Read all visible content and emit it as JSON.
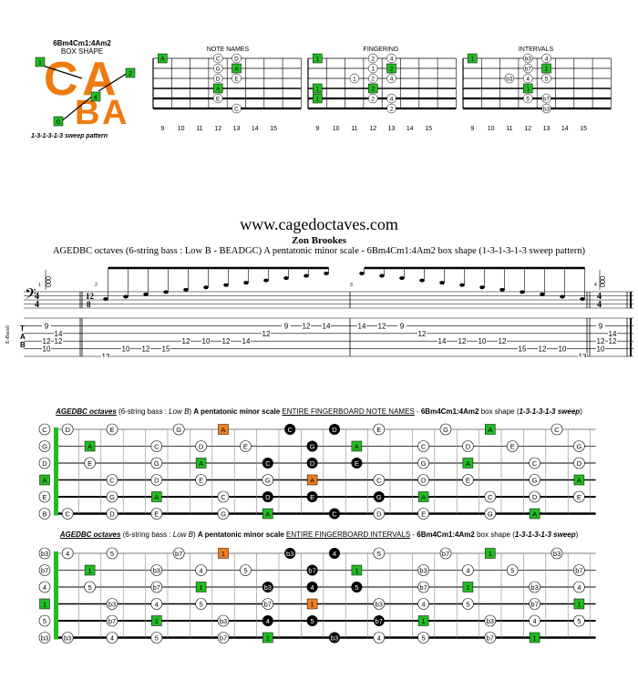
{
  "box": {
    "name": "6Bm4Cm1:4Am2",
    "shape_label": "BOX SHAPE",
    "letters": "CABA",
    "sweep": "1-3-1-3-1-3 sweep pattern",
    "markers": [
      "1",
      "2",
      "4",
      "0"
    ]
  },
  "diagrams": [
    {
      "label": "NOTE NAMES",
      "frets": [
        "9",
        "10",
        "11",
        "12",
        "13",
        "14",
        "15"
      ],
      "rows": [
        [
          "A",
          "",
          "",
          "C",
          "D",
          "",
          ""
        ],
        [
          "",
          "",
          "",
          "G",
          "A",
          "",
          ""
        ],
        [
          "",
          "",
          "",
          "D",
          "E",
          "",
          ""
        ],
        [
          "",
          "",
          "",
          "A",
          "",
          "",
          ""
        ],
        [
          "",
          "",
          "",
          "E",
          "",
          "",
          ""
        ],
        [
          "",
          "",
          "",
          "",
          "C",
          "",
          ""
        ]
      ]
    },
    {
      "label": "FINGERING",
      "frets": [
        "9",
        "10",
        "11",
        "12",
        "13",
        "14",
        "15"
      ],
      "rows": [
        [
          "1",
          "",
          "",
          "2",
          "4",
          "",
          ""
        ],
        [
          "",
          "",
          "",
          "1",
          "2",
          "",
          ""
        ],
        [
          "",
          "",
          "1",
          "2",
          "4",
          "",
          ""
        ],
        [
          "1",
          "",
          "",
          "2",
          "",
          "",
          ""
        ],
        [
          "1",
          "",
          "",
          "2",
          "4",
          "",
          ""
        ],
        [
          "",
          "",
          "",
          "",
          "2",
          "",
          ""
        ]
      ]
    },
    {
      "label": "INTERVALS",
      "frets": [
        "9",
        "10",
        "11",
        "12",
        "13",
        "14",
        "15"
      ],
      "rows": [
        [
          "1",
          "",
          "",
          "b3",
          "4",
          "",
          ""
        ],
        [
          "",
          "",
          "",
          "b7",
          "1",
          "",
          ""
        ],
        [
          "",
          "",
          "b3",
          "4",
          "5",
          "",
          ""
        ],
        [
          "",
          "",
          "",
          "1",
          "",
          "",
          ""
        ],
        [
          "",
          "",
          "",
          "5",
          "b7",
          "",
          ""
        ],
        [
          "",
          "",
          "",
          "",
          "b3",
          "",
          ""
        ]
      ]
    }
  ],
  "header": {
    "site": "www.cagedoctaves.com",
    "author": "Zon Brookes",
    "subtitle": "AGEDBC octaves (6-string bass : Low B - BEADGC) A pentatonic minor scale - 6Bm4Cm1:4Am2 box shape (1-3-1-3-1-3 sweep pattern)"
  },
  "score": {
    "instrument": "E-Bass6",
    "time1": [
      "4",
      "4"
    ],
    "time2": [
      "12",
      "8"
    ],
    "measure_numbers": [
      "1",
      "2",
      "3",
      "4"
    ],
    "tab_letters": [
      "T",
      "A",
      "B"
    ],
    "chord1": [
      {
        "string": 2,
        "fret": "9"
      },
      {
        "string": 3,
        "fret": "14"
      },
      {
        "string": 4,
        "fret": "12"
      },
      {
        "string": 4.0,
        "fret": "12"
      },
      {
        "string": 5,
        "fret": "10"
      }
    ],
    "run1": [
      {
        "string": 6,
        "fret": "13"
      },
      {
        "string": 5,
        "fret": "10"
      },
      {
        "string": 5,
        "fret": "12"
      },
      {
        "string": 5,
        "fret": "15"
      },
      {
        "string": 4,
        "fret": "12"
      },
      {
        "string": 4,
        "fret": "10"
      },
      {
        "string": 4,
        "fret": "12"
      },
      {
        "string": 4,
        "fret": "14"
      },
      {
        "string": 3,
        "fret": "12"
      },
      {
        "string": 2,
        "fret": "9"
      },
      {
        "string": 2,
        "fret": "12"
      },
      {
        "string": 2,
        "fret": "14"
      }
    ],
    "run2": [
      {
        "string": 2,
        "fret": "14"
      },
      {
        "string": 2,
        "fret": "12"
      },
      {
        "string": 2,
        "fret": "9"
      },
      {
        "string": 3,
        "fret": "12"
      },
      {
        "string": 4,
        "fret": "14"
      },
      {
        "string": 4,
        "fret": "12"
      },
      {
        "string": 4,
        "fret": "10"
      },
      {
        "string": 4,
        "fret": "12"
      },
      {
        "string": 5,
        "fret": "15"
      },
      {
        "string": 5,
        "fret": "12"
      },
      {
        "string": 5,
        "fret": "10"
      },
      {
        "string": 6,
        "fret": "13"
      }
    ]
  },
  "fb1": {
    "title_parts": [
      "AGEDBC octaves",
      " (6-string bass : ",
      "Low B",
      ") ",
      "A pentatonic minor scale",
      " ",
      "ENTIRE FINGERBOARD NOTE NAMES",
      " - ",
      "6Bm4Cm1:4Am2",
      " box shape (",
      "1-3-1-3-1-3 sweep",
      ")"
    ],
    "open": [
      "C",
      "G",
      "D",
      "A",
      "E",
      "B"
    ],
    "frets": [
      "1",
      "2",
      "3",
      "4",
      "5",
      "6",
      "7",
      "8",
      "9",
      "10",
      "11",
      "12",
      "13",
      "14",
      "15",
      "16",
      "17",
      "18",
      "19",
      "20",
      "21",
      "22",
      "23",
      "24"
    ],
    "rows": [
      [
        [
          "D",
          1,
          "w"
        ],
        [
          "E",
          3,
          "w"
        ],
        [
          "G",
          6,
          "w"
        ],
        [
          "A",
          8,
          "o"
        ],
        [
          "C",
          11,
          "b"
        ],
        [
          "D",
          13,
          "b"
        ],
        [
          "E",
          15,
          "w"
        ],
        [
          "G",
          18,
          "w"
        ],
        [
          "A",
          20,
          "g"
        ],
        [
          "C",
          23,
          "w"
        ]
      ],
      [
        [
          "A",
          2,
          "g"
        ],
        [
          "C",
          5,
          "w"
        ],
        [
          "D",
          7,
          "w"
        ],
        [
          "E",
          9,
          "w"
        ],
        [
          "G",
          12,
          "b"
        ],
        [
          "A",
          14,
          "g"
        ],
        [
          "C",
          17,
          "w"
        ],
        [
          "D",
          19,
          "w"
        ],
        [
          "E",
          21,
          "w"
        ],
        [
          "G",
          24,
          "w"
        ]
      ],
      [
        [
          "E",
          2,
          "w"
        ],
        [
          "G",
          5,
          "w"
        ],
        [
          "A",
          7,
          "g"
        ],
        [
          "C",
          10,
          "b"
        ],
        [
          "D",
          12,
          "b"
        ],
        [
          "E",
          14,
          "b"
        ],
        [
          "G",
          17,
          "w"
        ],
        [
          "A",
          19,
          "g"
        ],
        [
          "C",
          22,
          "w"
        ],
        [
          "D",
          24,
          "w"
        ]
      ],
      [
        [
          "C",
          3,
          "w"
        ],
        [
          "D",
          5,
          "w"
        ],
        [
          "E",
          7,
          "w"
        ],
        [
          "G",
          10,
          "w"
        ],
        [
          "A",
          12,
          "o"
        ],
        [
          "C",
          15,
          "w"
        ],
        [
          "D",
          17,
          "w"
        ],
        [
          "E",
          19,
          "w"
        ],
        [
          "G",
          22,
          "w"
        ],
        [
          "A",
          24,
          "g"
        ]
      ],
      [
        [
          "G",
          3,
          "w"
        ],
        [
          "A",
          5,
          "g"
        ],
        [
          "C",
          8,
          "w"
        ],
        [
          "D",
          10,
          "b"
        ],
        [
          "E",
          12,
          "b"
        ],
        [
          "G",
          15,
          "b"
        ],
        [
          "A",
          17,
          "g"
        ],
        [
          "C",
          20,
          "w"
        ],
        [
          "D",
          22,
          "w"
        ],
        [
          "E",
          24,
          "w"
        ]
      ],
      [
        [
          "C",
          1,
          "w"
        ],
        [
          "D",
          3,
          "w"
        ],
        [
          "E",
          5,
          "w"
        ],
        [
          "G",
          8,
          "w"
        ],
        [
          "A",
          10,
          "g"
        ],
        [
          "C",
          13,
          "b"
        ],
        [
          "D",
          15,
          "w"
        ],
        [
          "E",
          17,
          "w"
        ],
        [
          "G",
          20,
          "w"
        ],
        [
          "A",
          22,
          "g"
        ]
      ]
    ],
    "open_fill": [
      "w",
      "w",
      "w",
      "g",
      "w",
      "w"
    ]
  },
  "fb2": {
    "title_parts": [
      "AGEDBC octaves",
      " (6-string bass : ",
      "Low B",
      ") ",
      "A pentatonic minor scale",
      " ",
      "ENTIRE FINGERBOARD INTERVALS",
      " - ",
      "6Bm4Cm1:4Am2",
      " box shape (",
      "1-3-1-3-1-3 sweep",
      ")"
    ],
    "open": [
      "b3",
      "b7",
      "4",
      "1",
      "5",
      "b3"
    ],
    "frets": [
      "1",
      "2",
      "3",
      "4",
      "5",
      "6",
      "7",
      "8",
      "9",
      "10",
      "11",
      "12",
      "13",
      "14",
      "15",
      "16",
      "17",
      "18",
      "19",
      "20",
      "21",
      "22",
      "23",
      "24"
    ],
    "rows": [
      [
        [
          "4",
          1,
          "w"
        ],
        [
          "5",
          3,
          "w"
        ],
        [
          "b7",
          6,
          "w"
        ],
        [
          "1",
          8,
          "o"
        ],
        [
          "b3",
          11,
          "b"
        ],
        [
          "4",
          13,
          "b"
        ],
        [
          "5",
          15,
          "w"
        ],
        [
          "b7",
          18,
          "w"
        ],
        [
          "1",
          20,
          "g"
        ],
        [
          "b3",
          23,
          "w"
        ]
      ],
      [
        [
          "1",
          2,
          "g"
        ],
        [
          "b3",
          5,
          "w"
        ],
        [
          "4",
          7,
          "w"
        ],
        [
          "5",
          9,
          "w"
        ],
        [
          "b7",
          12,
          "b"
        ],
        [
          "1",
          14,
          "g"
        ],
        [
          "b3",
          17,
          "w"
        ],
        [
          "4",
          19,
          "w"
        ],
        [
          "5",
          21,
          "w"
        ],
        [
          "b7",
          24,
          "w"
        ]
      ],
      [
        [
          "5",
          2,
          "w"
        ],
        [
          "b7",
          5,
          "w"
        ],
        [
          "1",
          7,
          "g"
        ],
        [
          "b3",
          10,
          "b"
        ],
        [
          "4",
          12,
          "b"
        ],
        [
          "5",
          14,
          "b"
        ],
        [
          "b7",
          17,
          "w"
        ],
        [
          "1",
          19,
          "g"
        ],
        [
          "b3",
          22,
          "w"
        ],
        [
          "4",
          24,
          "w"
        ]
      ],
      [
        [
          "b3",
          3,
          "w"
        ],
        [
          "4",
          5,
          "w"
        ],
        [
          "5",
          7,
          "w"
        ],
        [
          "b7",
          10,
          "w"
        ],
        [
          "1",
          12,
          "o"
        ],
        [
          "b3",
          15,
          "w"
        ],
        [
          "4",
          17,
          "w"
        ],
        [
          "5",
          19,
          "w"
        ],
        [
          "b7",
          22,
          "w"
        ],
        [
          "1",
          24,
          "g"
        ]
      ],
      [
        [
          "b7",
          3,
          "w"
        ],
        [
          "1",
          5,
          "g"
        ],
        [
          "b3",
          8,
          "w"
        ],
        [
          "4",
          10,
          "b"
        ],
        [
          "5",
          12,
          "b"
        ],
        [
          "b7",
          15,
          "b"
        ],
        [
          "1",
          17,
          "g"
        ],
        [
          "b3",
          20,
          "w"
        ],
        [
          "4",
          22,
          "w"
        ],
        [
          "5",
          24,
          "w"
        ]
      ],
      [
        [
          "b3",
          1,
          "w"
        ],
        [
          "4",
          3,
          "w"
        ],
        [
          "5",
          5,
          "w"
        ],
        [
          "b7",
          8,
          "w"
        ],
        [
          "1",
          10,
          "g"
        ],
        [
          "b3",
          13,
          "b"
        ],
        [
          "4",
          15,
          "w"
        ],
        [
          "5",
          17,
          "w"
        ],
        [
          "b7",
          20,
          "w"
        ],
        [
          "1",
          22,
          "g"
        ]
      ]
    ],
    "open_fill": [
      "w",
      "w",
      "w",
      "g",
      "w",
      "w"
    ]
  },
  "colors": {
    "green": "#22bb22",
    "orange": "#f08020",
    "black": "#000000",
    "logo": "#f07a10"
  }
}
